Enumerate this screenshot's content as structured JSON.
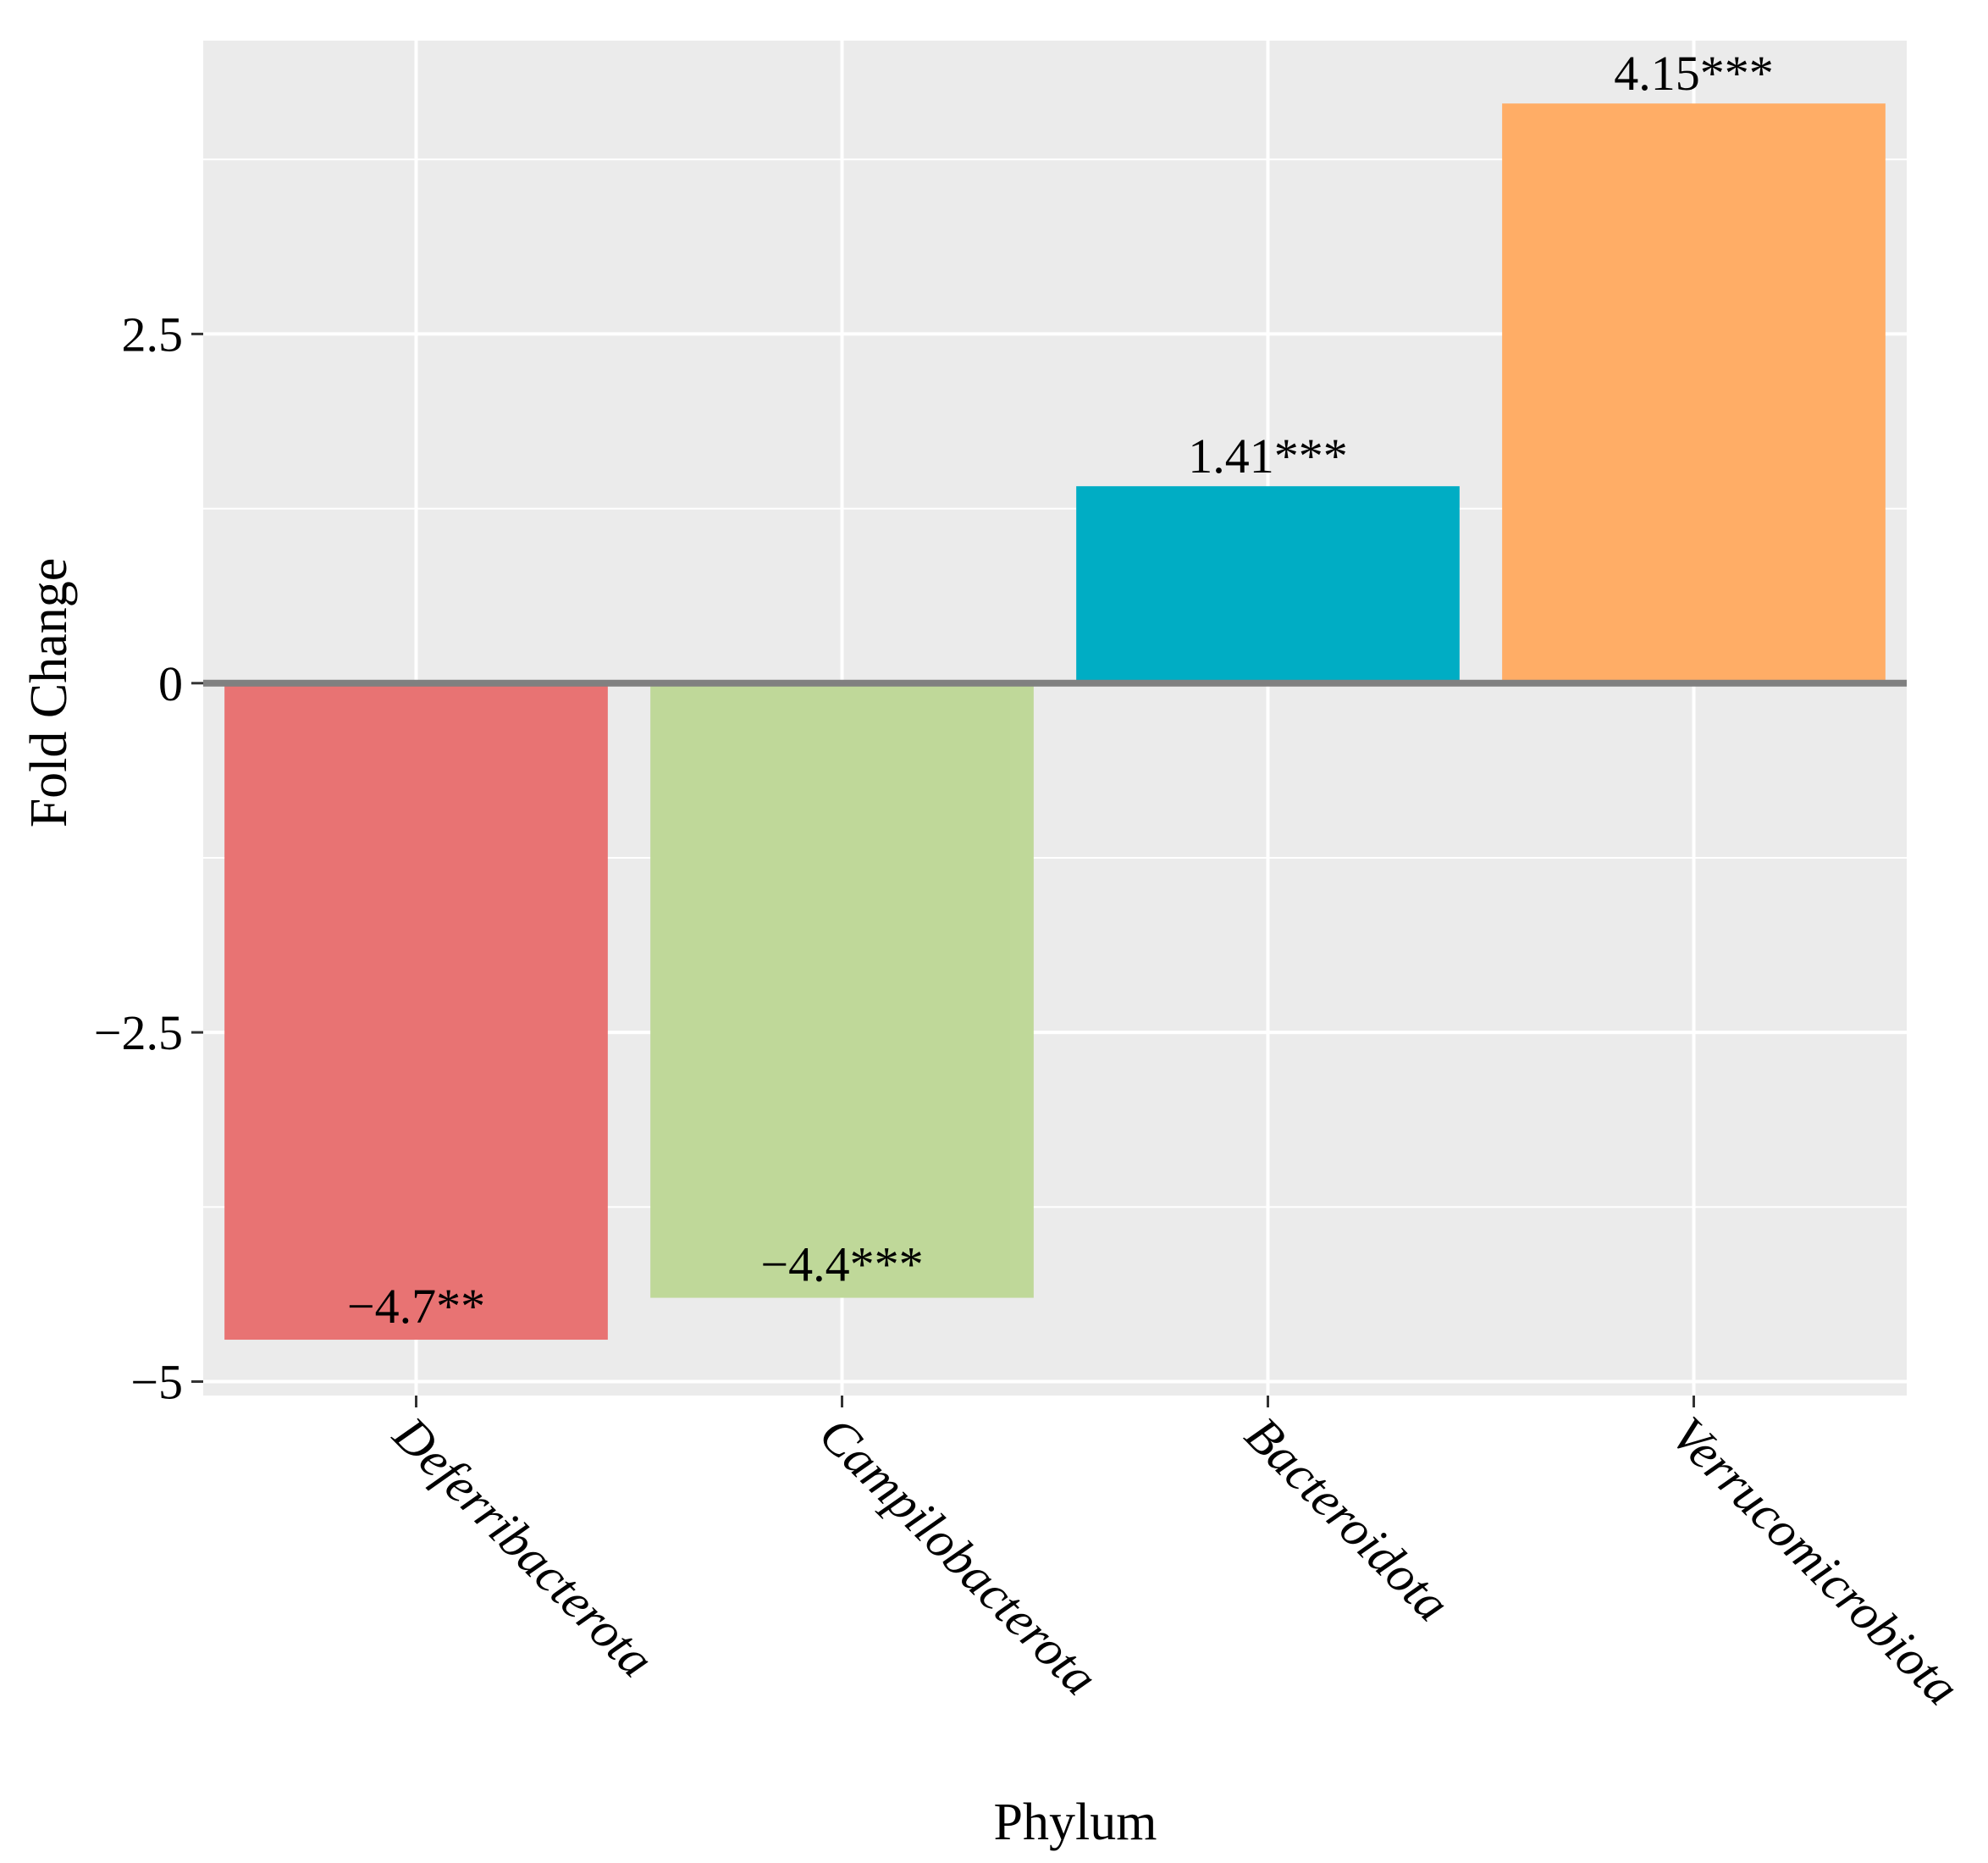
{
  "chart_data": {
    "type": "bar",
    "categories": [
      "Deferribacterota",
      "Campilobacterota",
      "Bacteroidota",
      "Verrucomicrobiota"
    ],
    "values": [
      -4.7,
      -4.4,
      1.41,
      4.15
    ],
    "data_labels": [
      "−4.7**",
      "−4.4***",
      "1.41***",
      "4.15***"
    ],
    "bar_colors": [
      "#E87373",
      "#BFD899",
      "#00ADC4",
      "#FFAD66"
    ],
    "xlabel": "Phylum",
    "ylabel": "Fold Change",
    "ylim": [
      -5.1,
      4.6
    ],
    "yticks": [
      2.5,
      0,
      -2.5,
      -5
    ],
    "ytick_labels": [
      "2.5",
      "0",
      "−2.5",
      "−5"
    ],
    "grid": true,
    "panel_color": "#EBEBEB",
    "zero_line_color": "#808080"
  }
}
